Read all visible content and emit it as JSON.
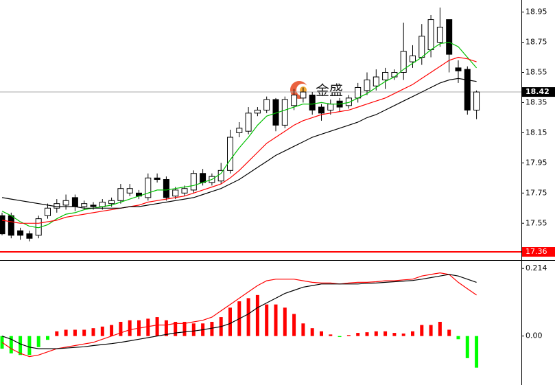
{
  "chart_data": [
    {
      "type": "candlestick",
      "watermark": "金盛",
      "open": [
        17.6,
        17.6,
        17.5,
        17.48,
        17.47,
        17.6,
        17.65,
        17.67,
        17.72,
        17.66,
        17.67,
        17.66,
        17.68,
        17.7,
        17.75,
        17.75,
        17.72,
        17.85,
        17.84,
        17.73,
        17.75,
        17.77,
        17.88,
        17.82,
        17.83,
        17.9,
        18.15,
        18.16,
        18.28,
        18.3,
        18.37,
        18.2,
        18.33,
        18.38,
        18.4,
        18.32,
        18.3,
        18.36,
        18.33,
        18.38,
        18.43,
        18.46,
        18.5,
        18.52,
        18.55,
        18.62,
        18.65,
        18.7,
        18.75,
        18.9,
        18.58,
        18.57,
        18.3
      ],
      "high": [
        17.62,
        17.62,
        17.52,
        17.5,
        17.6,
        17.68,
        17.71,
        17.74,
        17.74,
        17.7,
        17.69,
        17.71,
        17.72,
        17.81,
        17.81,
        17.77,
        17.88,
        17.88,
        17.86,
        17.79,
        17.8,
        17.9,
        17.91,
        17.88,
        17.95,
        18.17,
        18.22,
        18.32,
        18.32,
        18.39,
        18.38,
        18.39,
        18.44,
        18.45,
        18.42,
        18.34,
        18.37,
        18.38,
        18.4,
        18.48,
        18.55,
        18.57,
        18.58,
        18.57,
        18.88,
        18.73,
        18.87,
        18.93,
        18.98,
        18.9,
        18.63,
        18.59,
        18.43
      ],
      "low": [
        17.47,
        17.45,
        17.44,
        17.43,
        17.45,
        17.58,
        17.62,
        17.64,
        17.63,
        17.64,
        17.64,
        17.64,
        17.66,
        17.68,
        17.73,
        17.71,
        17.7,
        17.82,
        17.7,
        17.71,
        17.73,
        17.75,
        17.8,
        17.8,
        17.81,
        17.88,
        18.12,
        18.14,
        18.26,
        18.28,
        18.16,
        18.18,
        18.3,
        18.35,
        18.27,
        18.23,
        18.27,
        18.29,
        18.31,
        18.35,
        18.4,
        18.43,
        18.44,
        18.5,
        18.5,
        18.58,
        18.6,
        18.65,
        18.72,
        18.55,
        18.48,
        18.27,
        18.24
      ],
      "close": [
        17.48,
        17.47,
        17.47,
        17.45,
        17.58,
        17.65,
        17.68,
        17.7,
        17.66,
        17.68,
        17.66,
        17.69,
        17.7,
        17.78,
        17.78,
        17.73,
        17.85,
        17.84,
        17.72,
        17.77,
        17.78,
        17.88,
        17.82,
        17.86,
        17.9,
        18.12,
        18.18,
        18.28,
        18.3,
        18.37,
        18.2,
        18.37,
        18.4,
        18.42,
        18.3,
        18.28,
        18.34,
        18.32,
        18.38,
        18.45,
        18.5,
        18.52,
        18.55,
        18.55,
        18.69,
        18.66,
        18.79,
        18.9,
        18.85,
        18.67,
        18.56,
        18.3,
        18.42
      ],
      "lines": [
        {
          "color": "#00c000",
          "values": [
            17.63,
            17.6,
            17.56,
            17.53,
            17.52,
            17.54,
            17.58,
            17.61,
            17.62,
            17.64,
            17.65,
            17.66,
            17.67,
            17.69,
            17.71,
            17.73,
            17.75,
            17.77,
            17.77,
            17.78,
            17.79,
            17.8,
            17.82,
            17.84,
            17.88,
            17.97,
            18.05,
            18.12,
            18.2,
            18.26,
            18.28,
            18.3,
            18.32,
            18.34,
            18.34,
            18.35,
            18.34,
            18.34,
            18.35,
            18.38,
            18.41,
            18.45,
            18.49,
            18.52,
            18.57,
            18.61,
            18.65,
            18.7,
            18.74,
            18.75,
            18.72,
            18.65,
            18.58
          ]
        },
        {
          "color": "#ff0000",
          "values": [
            17.57,
            17.56,
            17.55,
            17.55,
            17.55,
            17.56,
            17.57,
            17.59,
            17.6,
            17.61,
            17.62,
            17.63,
            17.64,
            17.65,
            17.66,
            17.67,
            17.69,
            17.7,
            17.71,
            17.72,
            17.73,
            17.75,
            17.77,
            17.79,
            17.81,
            17.85,
            17.9,
            17.96,
            18.02,
            18.08,
            18.12,
            18.16,
            18.2,
            18.23,
            18.25,
            18.27,
            18.28,
            18.29,
            18.3,
            18.32,
            18.34,
            18.36,
            18.38,
            18.41,
            18.44,
            18.47,
            18.51,
            18.55,
            18.59,
            18.63,
            18.65,
            18.64,
            18.62
          ]
        },
        {
          "color": "#000000",
          "values": [
            17.72,
            17.71,
            17.7,
            17.69,
            17.68,
            17.67,
            17.66,
            17.66,
            17.66,
            17.65,
            17.65,
            17.65,
            17.65,
            17.65,
            17.66,
            17.66,
            17.67,
            17.68,
            17.69,
            17.7,
            17.71,
            17.72,
            17.74,
            17.76,
            17.78,
            17.81,
            17.84,
            17.88,
            17.92,
            17.96,
            18.0,
            18.03,
            18.06,
            18.09,
            18.12,
            18.14,
            18.16,
            18.18,
            18.2,
            18.22,
            18.25,
            18.27,
            18.3,
            18.33,
            18.36,
            18.39,
            18.42,
            18.45,
            18.48,
            18.5,
            18.51,
            18.5,
            18.49
          ]
        }
      ],
      "current_price": 18.42,
      "level_line": 17.36,
      "level_color": "#ff0000",
      "ylim": [
        17.31,
        19.03
      ],
      "yticks": [
        17.55,
        17.75,
        17.95,
        18.15,
        18.35,
        18.55,
        18.75,
        18.95
      ]
    },
    {
      "type": "macd",
      "values": [
        -0.04,
        -0.055,
        -0.06,
        -0.06,
        -0.035,
        -0.012,
        0.015,
        0.02,
        0.02,
        0.02,
        0.025,
        0.03,
        0.035,
        0.045,
        0.05,
        0.05,
        0.055,
        0.06,
        0.05,
        0.045,
        0.045,
        0.04,
        0.04,
        0.045,
        0.06,
        0.09,
        0.11,
        0.12,
        0.13,
        0.1,
        0.1,
        0.09,
        0.07,
        0.04,
        0.025,
        0.015,
        0.005,
        -0.003,
        0.003,
        0.01,
        0.012,
        0.015,
        0.015,
        0.01,
        0.008,
        0.015,
        0.035,
        0.035,
        0.045,
        0.02,
        -0.01,
        -0.07,
        -0.1
      ],
      "up_color": "#ff0000",
      "down_color": "#00ff00",
      "lines": [
        {
          "color": "#ff0000",
          "values": [
            -0.02,
            -0.04,
            -0.055,
            -0.065,
            -0.06,
            -0.05,
            -0.04,
            -0.035,
            -0.03,
            -0.025,
            -0.02,
            -0.01,
            0.0,
            0.01,
            0.02,
            0.025,
            0.03,
            0.035,
            0.035,
            0.04,
            0.04,
            0.045,
            0.05,
            0.06,
            0.08,
            0.1,
            0.12,
            0.14,
            0.16,
            0.175,
            0.18,
            0.18,
            0.18,
            0.175,
            0.17,
            0.168,
            0.168,
            0.165,
            0.168,
            0.17,
            0.17,
            0.172,
            0.175,
            0.175,
            0.178,
            0.18,
            0.19,
            0.195,
            0.2,
            0.195,
            0.17,
            0.15,
            0.13
          ]
        },
        {
          "color": "#000000",
          "values": [
            0.0,
            -0.01,
            -0.025,
            -0.035,
            -0.04,
            -0.04,
            -0.04,
            -0.038,
            -0.036,
            -0.034,
            -0.03,
            -0.027,
            -0.024,
            -0.02,
            -0.015,
            -0.01,
            -0.005,
            0.0,
            0.005,
            0.01,
            0.013,
            0.016,
            0.02,
            0.025,
            0.03,
            0.04,
            0.055,
            0.07,
            0.09,
            0.105,
            0.12,
            0.135,
            0.145,
            0.155,
            0.16,
            0.165,
            0.165,
            0.165,
            0.165,
            0.165,
            0.167,
            0.168,
            0.17,
            0.172,
            0.174,
            0.176,
            0.18,
            0.185,
            0.19,
            0.195,
            0.19,
            0.18,
            0.17
          ]
        }
      ],
      "ylim": [
        -0.155,
        0.234
      ],
      "yticks": [
        {
          "value": 0,
          "label": "0.00"
        },
        0.214
      ]
    }
  ]
}
